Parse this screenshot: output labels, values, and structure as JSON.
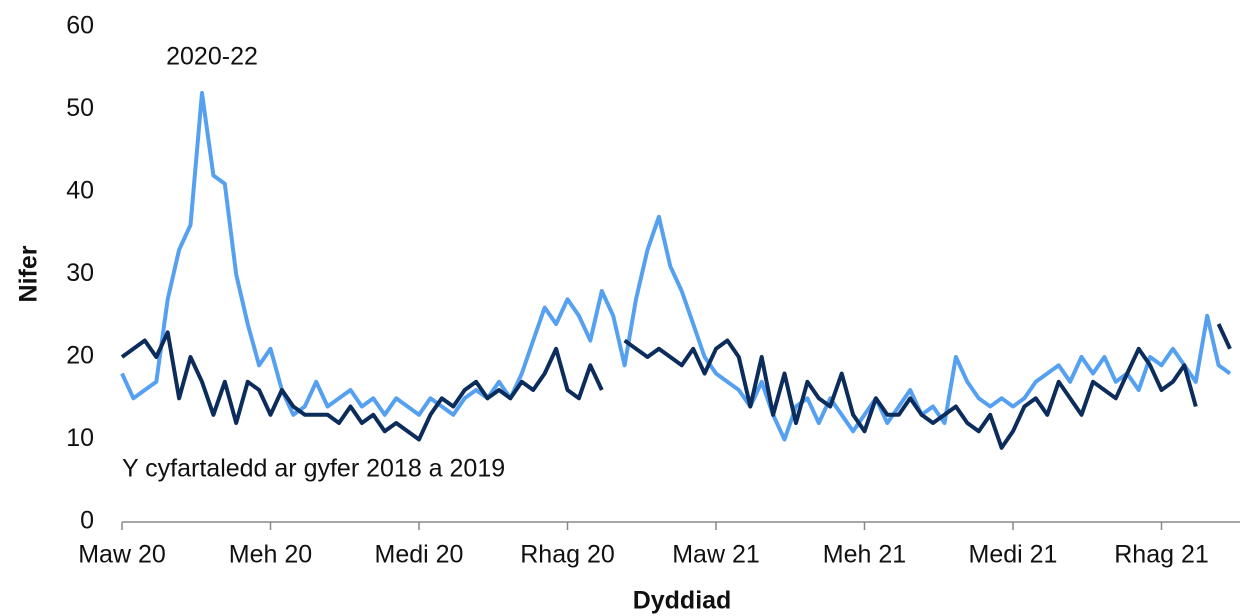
{
  "chart_data": {
    "type": "line",
    "x_label": "Dyddiad",
    "y_label": "Nifer",
    "categories": [
      "Maw 20",
      null,
      null,
      null,
      null,
      null,
      null,
      null,
      null,
      null,
      null,
      null,
      null,
      "Meh 20",
      null,
      null,
      null,
      null,
      null,
      null,
      null,
      null,
      null,
      null,
      null,
      null,
      "Medi 20",
      null,
      null,
      null,
      null,
      null,
      null,
      null,
      null,
      null,
      null,
      null,
      null,
      "Rhag 20",
      null,
      null,
      null,
      null,
      null,
      null,
      null,
      null,
      null,
      null,
      null,
      null,
      "Maw 21",
      null,
      null,
      null,
      null,
      null,
      null,
      null,
      null,
      null,
      null,
      null,
      null,
      "Meh 21",
      null,
      null,
      null,
      null,
      null,
      null,
      null,
      null,
      null,
      null,
      null,
      null,
      "Medi 21",
      null,
      null,
      null,
      null,
      null,
      null,
      null,
      null,
      null,
      null,
      null,
      null,
      "Rhag 21",
      null,
      null,
      null,
      null,
      null,
      null
    ],
    "series": [
      {
        "name": "2020-22",
        "color": "#55a0f0",
        "values": [
          18,
          15,
          16,
          17,
          27,
          33,
          36,
          52,
          42,
          41,
          30,
          24,
          19,
          21,
          16,
          13,
          14,
          17,
          14,
          15,
          16,
          14,
          15,
          13,
          15,
          14,
          13,
          15,
          14,
          13,
          15,
          16,
          15,
          17,
          15,
          18,
          22,
          26,
          24,
          27,
          25,
          22,
          28,
          25,
          19,
          27,
          33,
          37,
          31,
          28,
          24,
          20,
          18,
          17,
          16,
          14,
          17,
          13,
          10,
          14,
          15,
          12,
          15,
          13,
          11,
          13,
          15,
          12,
          14,
          16,
          13,
          14,
          12,
          20,
          17,
          15,
          14,
          15,
          14,
          15,
          17,
          18,
          19,
          17,
          20,
          18,
          20,
          17,
          18,
          16,
          20,
          19,
          21,
          19,
          17,
          25,
          19,
          18
        ]
      },
      {
        "name": "Y cyfartaledd ar gyfer 2018 a 2019",
        "color": "#0c2c5c",
        "values": [
          20,
          21,
          22,
          20,
          23,
          15,
          20,
          17,
          13,
          17,
          12,
          17,
          16,
          13,
          16,
          14,
          13,
          13,
          13,
          12,
          14,
          12,
          13,
          11,
          12,
          11,
          10,
          13,
          15,
          14,
          16,
          17,
          15,
          16,
          15,
          17,
          16,
          18,
          21,
          16,
          15,
          19,
          16,
          null,
          22,
          21,
          20,
          21,
          20,
          19,
          21,
          18,
          21,
          22,
          20,
          14,
          20,
          13,
          18,
          12,
          17,
          15,
          14,
          18,
          13,
          11,
          15,
          13,
          13,
          15,
          13,
          12,
          13,
          14,
          12,
          11,
          13,
          9,
          11,
          14,
          15,
          13,
          17,
          15,
          13,
          17,
          16,
          15,
          18,
          21,
          19,
          16,
          17,
          19,
          14,
          null,
          24,
          21
        ]
      }
    ],
    "ylim": [
      0,
      60
    ],
    "yticks": [
      0,
      10,
      20,
      30,
      40,
      50,
      60
    ],
    "grid": false
  }
}
